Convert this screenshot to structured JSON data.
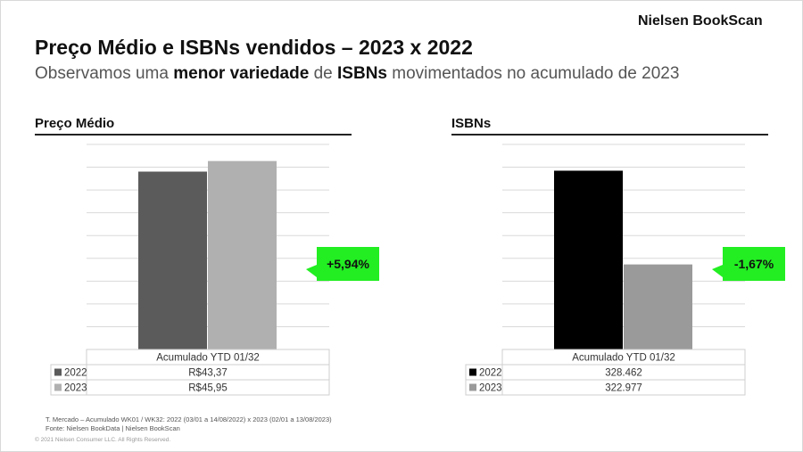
{
  "brand": "Nielsen BookScan",
  "title": "Preço Médio e ISBNs vendidos – 2023 x 2022",
  "subtitle": {
    "part1": "Observamos uma ",
    "bold1": "menor variedade",
    "part2": " de ",
    "bold2": "ISBNs",
    "part3": " movimentados no acumulado de 2023"
  },
  "chart_data": [
    {
      "type": "bar",
      "title": "Preço Médio",
      "categories": [
        "Acumulado YTD 01/32"
      ],
      "series": [
        {
          "name": "2022",
          "values": [
            43.37
          ],
          "display": "R$43,37",
          "color": "#5b5b5b"
        },
        {
          "name": "2023",
          "values": [
            45.95
          ],
          "display": "R$45,95",
          "color": "#b0b0b0"
        }
      ],
      "ylim": [
        0,
        50
      ],
      "grid": true,
      "badge": {
        "text": "+5,94%",
        "color": "#22ee22"
      }
    },
    {
      "type": "bar",
      "title": "ISBNs",
      "categories": [
        "Acumulado YTD 01/32"
      ],
      "series": [
        {
          "name": "2022",
          "values": [
            328462
          ],
          "display": "328.462",
          "color": "#000000"
        },
        {
          "name": "2023",
          "values": [
            322977
          ],
          "display": "322.977",
          "color": "#9a9a9a"
        }
      ],
      "ylim": [
        318000,
        330000
      ],
      "grid": true,
      "badge": {
        "text": "-1,67%",
        "color": "#22ee22"
      }
    }
  ],
  "footnote": {
    "line1": "T. Mercado – Acumulado WK01 / WK32: 2022 (03/01 a 14/08/2022) x 2023 (02/01 a 13/08/2023)",
    "line2": "Fonte: Nielsen BookData | Nielsen BookScan"
  },
  "copyright": "© 2021 Nielsen Consumer LLC. All Rights Reserved."
}
